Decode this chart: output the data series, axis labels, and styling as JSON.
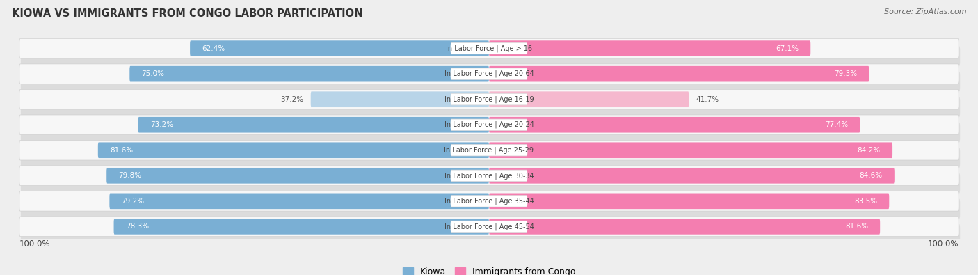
{
  "title": "Kiowa vs Immigrants from Congo Labor Participation",
  "source": "Source: ZipAtlas.com",
  "categories": [
    "In Labor Force | Age > 16",
    "In Labor Force | Age 20-64",
    "In Labor Force | Age 16-19",
    "In Labor Force | Age 20-24",
    "In Labor Force | Age 25-29",
    "In Labor Force | Age 30-34",
    "In Labor Force | Age 35-44",
    "In Labor Force | Age 45-54"
  ],
  "kiowa_values": [
    62.4,
    75.0,
    37.2,
    73.2,
    81.6,
    79.8,
    79.2,
    78.3
  ],
  "congo_values": [
    67.1,
    79.3,
    41.7,
    77.4,
    84.2,
    84.6,
    83.5,
    81.6
  ],
  "kiowa_color": "#7aafd4",
  "kiowa_color_light": "#b8d4e8",
  "congo_color": "#f47eb0",
  "congo_color_light": "#f5b8ce",
  "background_color": "#eeeeee",
  "row_bg_color": "#f7f7f7",
  "row_border_color": "#d0d0d0",
  "label_white": "#ffffff",
  "label_dark": "#555555",
  "center_label_color": "#444444",
  "bar_height": 0.62,
  "legend_kiowa": "Kiowa",
  "legend_congo": "Immigrants from Congo",
  "x_left_label": "100.0%",
  "x_right_label": "100.0%"
}
